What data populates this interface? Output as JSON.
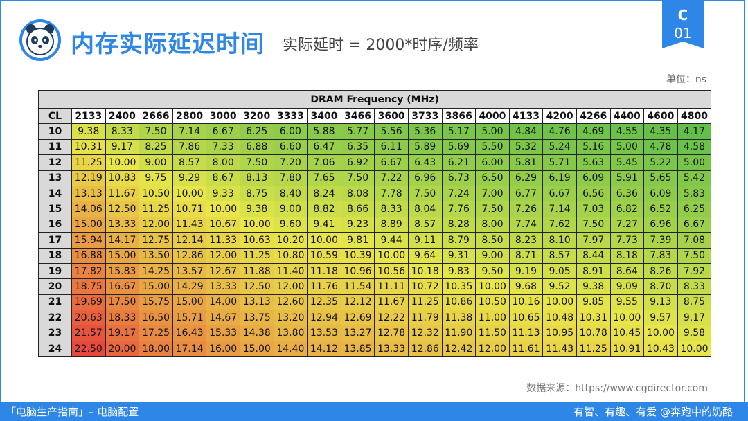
{
  "header": {
    "title": "内存实际延迟时间",
    "subtitle": "实际延时 = 2000*时序/频率",
    "badge_top": "C",
    "badge_bottom": "01",
    "unit": "单位：ns"
  },
  "chart_data": {
    "type": "table",
    "title": "DRAM Frequency (MHz)",
    "row_header": "CL",
    "columns": [
      "2133",
      "2400",
      "2666",
      "2800",
      "3000",
      "3200",
      "3333",
      "3400",
      "3466",
      "3600",
      "3733",
      "3866",
      "4000",
      "4133",
      "4200",
      "4266",
      "4400",
      "4600",
      "4800"
    ],
    "rows": [
      {
        "cl": "10",
        "values": [
          "9.38",
          "8.33",
          "7.50",
          "7.14",
          "6.67",
          "6.25",
          "6.00",
          "5.88",
          "5.77",
          "5.56",
          "5.36",
          "5.17",
          "5.00",
          "4.84",
          "4.76",
          "4.69",
          "4.55",
          "4.35",
          "4.17"
        ]
      },
      {
        "cl": "11",
        "values": [
          "10.31",
          "9.17",
          "8.25",
          "7.86",
          "7.33",
          "6.88",
          "6.60",
          "6.47",
          "6.35",
          "6.11",
          "5.89",
          "5.69",
          "5.50",
          "5.32",
          "5.24",
          "5.16",
          "5.00",
          "4.78",
          "4.58"
        ]
      },
      {
        "cl": "12",
        "values": [
          "11.25",
          "10.00",
          "9.00",
          "8.57",
          "8.00",
          "7.50",
          "7.20",
          "7.06",
          "6.92",
          "6.67",
          "6.43",
          "6.21",
          "6.00",
          "5.81",
          "5.71",
          "5.63",
          "5.45",
          "5.22",
          "5.00"
        ]
      },
      {
        "cl": "13",
        "values": [
          "12.19",
          "10.83",
          "9.75",
          "9.29",
          "8.67",
          "8.13",
          "7.80",
          "7.65",
          "7.50",
          "7.22",
          "6.96",
          "6.73",
          "6.50",
          "6.29",
          "6.19",
          "6.09",
          "5.91",
          "5.65",
          "5.42"
        ]
      },
      {
        "cl": "14",
        "values": [
          "13.13",
          "11.67",
          "10.50",
          "10.00",
          "9.33",
          "8.75",
          "8.40",
          "8.24",
          "8.08",
          "7.78",
          "7.50",
          "7.24",
          "7.00",
          "6.77",
          "6.67",
          "6.56",
          "6.36",
          "6.09",
          "5.83"
        ]
      },
      {
        "cl": "15",
        "values": [
          "14.06",
          "12.50",
          "11.25",
          "10.71",
          "10.00",
          "9.38",
          "9.00",
          "8.82",
          "8.66",
          "8.33",
          "8.04",
          "7.76",
          "7.50",
          "7.26",
          "7.14",
          "7.03",
          "6.82",
          "6.52",
          "6.25"
        ]
      },
      {
        "cl": "16",
        "values": [
          "15.00",
          "13.33",
          "12.00",
          "11.43",
          "10.67",
          "10.00",
          "9.60",
          "9.41",
          "9.23",
          "8.89",
          "8.57",
          "8.28",
          "8.00",
          "7.74",
          "7.62",
          "7.50",
          "7.27",
          "6.96",
          "6.67"
        ]
      },
      {
        "cl": "17",
        "values": [
          "15.94",
          "14.17",
          "12.75",
          "12.14",
          "11.33",
          "10.63",
          "10.20",
          "10.00",
          "9.81",
          "9.44",
          "9.11",
          "8.79",
          "8.50",
          "8.23",
          "8.10",
          "7.97",
          "7.73",
          "7.39",
          "7.08"
        ]
      },
      {
        "cl": "18",
        "values": [
          "16.88",
          "15.00",
          "13.50",
          "12.86",
          "12.00",
          "11.25",
          "10.80",
          "10.59",
          "10.39",
          "10.00",
          "9.64",
          "9.31",
          "9.00",
          "8.71",
          "8.57",
          "8.44",
          "8.18",
          "7.83",
          "7.50"
        ]
      },
      {
        "cl": "19",
        "values": [
          "17.82",
          "15.83",
          "14.25",
          "13.57",
          "12.67",
          "11.88",
          "11.40",
          "11.18",
          "10.96",
          "10.56",
          "10.18",
          "9.83",
          "9.50",
          "9.19",
          "9.05",
          "8.91",
          "8.64",
          "8.26",
          "7.92"
        ]
      },
      {
        "cl": "20",
        "values": [
          "18.75",
          "16.67",
          "15.00",
          "14.29",
          "13.33",
          "12.50",
          "12.00",
          "11.76",
          "11.54",
          "11.11",
          "10.72",
          "10.35",
          "10.00",
          "9.68",
          "9.52",
          "9.38",
          "9.09",
          "8.70",
          "8.33"
        ]
      },
      {
        "cl": "21",
        "values": [
          "19.69",
          "17.50",
          "15.75",
          "15.00",
          "14.00",
          "13.13",
          "12.60",
          "12.35",
          "12.12",
          "11.67",
          "11.25",
          "10.86",
          "10.50",
          "10.16",
          "10.00",
          "9.85",
          "9.55",
          "9.13",
          "8.75"
        ]
      },
      {
        "cl": "22",
        "values": [
          "20.63",
          "18.33",
          "16.50",
          "15.71",
          "14.67",
          "13.75",
          "13.20",
          "12.94",
          "12.69",
          "12.22",
          "11.79",
          "11.38",
          "11.00",
          "10.65",
          "10.48",
          "10.31",
          "10.00",
          "9.57",
          "9.17"
        ]
      },
      {
        "cl": "23",
        "values": [
          "21.57",
          "19.17",
          "17.25",
          "16.43",
          "15.33",
          "14.38",
          "13.80",
          "13.53",
          "13.27",
          "12.78",
          "12.32",
          "11.90",
          "11.50",
          "11.13",
          "10.95",
          "10.78",
          "10.45",
          "10.00",
          "9.58"
        ]
      },
      {
        "cl": "24",
        "values": [
          "22.50",
          "20.00",
          "18.00",
          "17.14",
          "16.00",
          "15.00",
          "14.40",
          "14.12",
          "13.85",
          "13.33",
          "12.86",
          "12.42",
          "12.00",
          "11.61",
          "11.43",
          "11.25",
          "10.91",
          "10.43",
          "10.00"
        ]
      }
    ],
    "color_scale": {
      "low": "#63be4a",
      "mid": "#e8e64a",
      "high": "#e8473d"
    }
  },
  "source": "数据来源：https://www.cgdirector.com",
  "footer": {
    "left": "「电脑生产指南」– 电脑配置",
    "right": "有智、有趣、有爱  @奔跑中的奶酪"
  }
}
